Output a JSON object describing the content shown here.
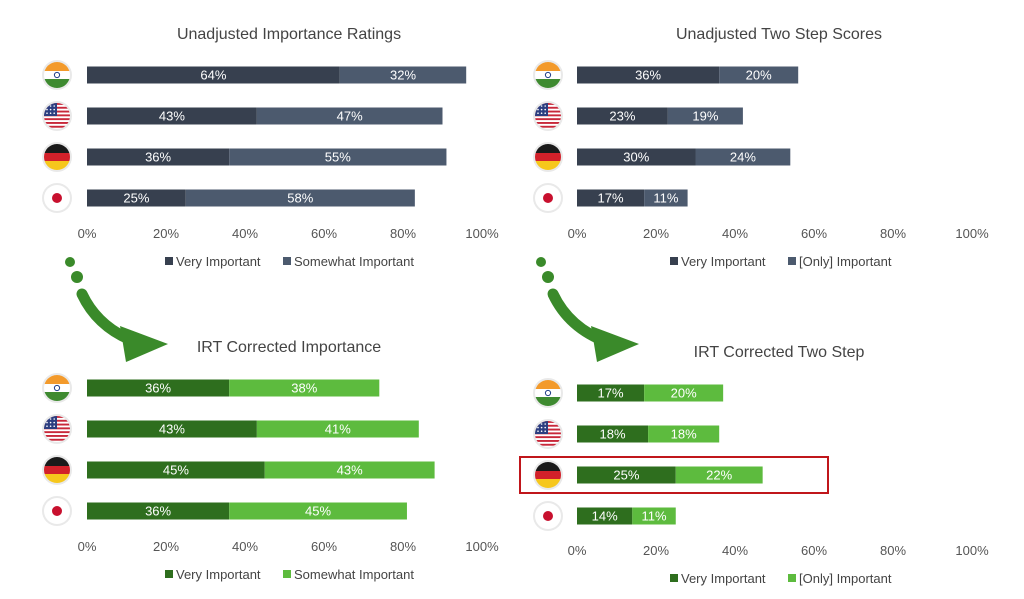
{
  "colors": {
    "dark_navy": "#37404f",
    "slate": "#4c5a6e",
    "dark_green": "#2e6e1e",
    "light_green": "#5dbb3e",
    "arrow_green": "#3a8a2a",
    "highlight_red": "#c0161b"
  },
  "countries": [
    "india-flag-icon",
    "usa-flag-icon",
    "germany-flag-icon",
    "japan-flag-icon"
  ],
  "chart_data": [
    {
      "type": "bar",
      "orientation": "horizontal",
      "stacked": true,
      "title": "Unadjusted Importance Ratings",
      "categories": [
        "India",
        "USA",
        "Germany",
        "Japan"
      ],
      "series": [
        {
          "name": "Very Important",
          "values": [
            64,
            43,
            36,
            25
          ],
          "labels": [
            "64%",
            "43%",
            "36%",
            "25%"
          ]
        },
        {
          "name": "Somewhat Important",
          "values": [
            32,
            47,
            55,
            58
          ],
          "labels": [
            "32%",
            "47%",
            "55%",
            "58%"
          ]
        }
      ],
      "xlim": [
        0,
        100
      ],
      "x_ticks": [
        "0%",
        "20%",
        "40%",
        "60%",
        "80%",
        "100%"
      ],
      "legend": "bottom",
      "grid": false
    },
    {
      "type": "bar",
      "orientation": "horizontal",
      "stacked": true,
      "title": "Unadjusted Two Step Scores",
      "categories": [
        "India",
        "USA",
        "Germany",
        "Japan"
      ],
      "series": [
        {
          "name": "Very Important",
          "values": [
            36,
            23,
            30,
            17
          ],
          "labels": [
            "36%",
            "23%",
            "30%",
            "17%"
          ]
        },
        {
          "name": "[Only] Important",
          "values": [
            20,
            19,
            24,
            11
          ],
          "labels": [
            "20%",
            "19%",
            "24%",
            "11%"
          ]
        }
      ],
      "xlim": [
        0,
        100
      ],
      "x_ticks": [
        "0%",
        "20%",
        "40%",
        "60%",
        "80%",
        "100%"
      ],
      "legend": "bottom",
      "grid": false
    },
    {
      "type": "bar",
      "orientation": "horizontal",
      "stacked": true,
      "title": "IRT Corrected Importance",
      "categories": [
        "India",
        "USA",
        "Germany",
        "Japan"
      ],
      "series": [
        {
          "name": "Very Important",
          "values": [
            36,
            43,
            45,
            36
          ],
          "labels": [
            "36%",
            "43%",
            "45%",
            "36%"
          ]
        },
        {
          "name": "Somewhat Important",
          "values": [
            38,
            41,
            43,
            45
          ],
          "labels": [
            "38%",
            "41%",
            "43%",
            "45%"
          ]
        }
      ],
      "xlim": [
        0,
        100
      ],
      "x_ticks": [
        "0%",
        "20%",
        "40%",
        "60%",
        "80%",
        "100%"
      ],
      "legend": "bottom",
      "grid": false
    },
    {
      "type": "bar",
      "orientation": "horizontal",
      "stacked": true,
      "title": "IRT Corrected Two Step",
      "categories": [
        "India",
        "USA",
        "Germany",
        "Japan"
      ],
      "series": [
        {
          "name": "Very Important",
          "values": [
            17,
            18,
            25,
            14
          ],
          "labels": [
            "17%",
            "18%",
            "25%",
            "14%"
          ]
        },
        {
          "name": "[Only] Important",
          "values": [
            20,
            18,
            22,
            11
          ],
          "labels": [
            "20%",
            "18%",
            "22%",
            "11%"
          ]
        }
      ],
      "xlim": [
        0,
        100
      ],
      "x_ticks": [
        "0%",
        "20%",
        "40%",
        "60%",
        "80%",
        "100%"
      ],
      "legend": "bottom",
      "grid": false,
      "highlighted_category": "Germany"
    }
  ]
}
